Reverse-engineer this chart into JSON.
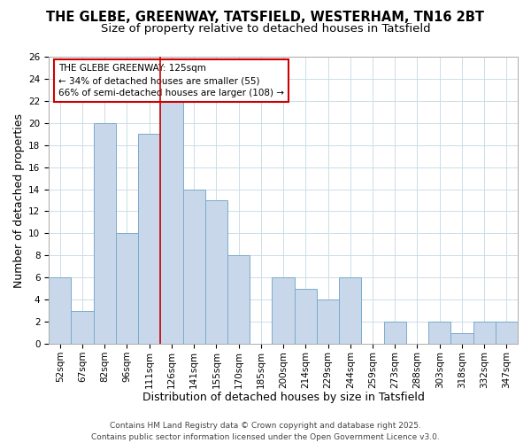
{
  "title": "THE GLEBE, GREENWAY, TATSFIELD, WESTERHAM, TN16 2BT",
  "subtitle": "Size of property relative to detached houses in Tatsfield",
  "xlabel": "Distribution of detached houses by size in Tatsfield",
  "ylabel": "Number of detached properties",
  "footer_line1": "Contains HM Land Registry data © Crown copyright and database right 2025.",
  "footer_line2": "Contains public sector information licensed under the Open Government Licence v3.0.",
  "bin_labels": [
    "52sqm",
    "67sqm",
    "82sqm",
    "96sqm",
    "111sqm",
    "126sqm",
    "141sqm",
    "155sqm",
    "170sqm",
    "185sqm",
    "200sqm",
    "214sqm",
    "229sqm",
    "244sqm",
    "259sqm",
    "273sqm",
    "288sqm",
    "303sqm",
    "318sqm",
    "332sqm",
    "347sqm"
  ],
  "bar_values": [
    6,
    3,
    20,
    10,
    19,
    22,
    14,
    13,
    8,
    0,
    6,
    5,
    4,
    6,
    0,
    2,
    0,
    2,
    1,
    2,
    2
  ],
  "bar_color": "#c8d8ea",
  "bar_edge_color": "#7aabcc",
  "highlight_bin_index": 5,
  "highlight_line_color": "#cc0000",
  "annotation_box_edge_color": "#cc0000",
  "annotation_line1": "THE GLEBE GREENWAY: 125sqm",
  "annotation_line2": "← 34% of detached houses are smaller (55)",
  "annotation_line3": "66% of semi-detached houses are larger (108) →",
  "ylim": [
    0,
    26
  ],
  "yticks": [
    0,
    2,
    4,
    6,
    8,
    10,
    12,
    14,
    16,
    18,
    20,
    22,
    24,
    26
  ],
  "background_color": "#ffffff",
  "grid_color": "#ccdde8",
  "title_fontsize": 10.5,
  "subtitle_fontsize": 9.5,
  "axis_label_fontsize": 9,
  "tick_fontsize": 7.5,
  "annotation_fontsize": 7.5,
  "footer_fontsize": 6.5
}
